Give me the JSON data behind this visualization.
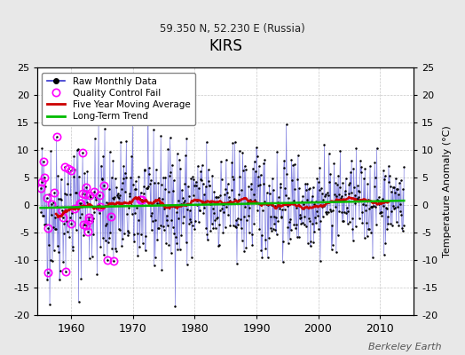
{
  "title": "KIRS",
  "subtitle": "59.350 N, 52.230 E (Russia)",
  "ylabel_right": "Temperature Anomaly (°C)",
  "ylim": [
    -20,
    25
  ],
  "yticks_left": [
    -20,
    -15,
    -10,
    -5,
    0,
    5,
    10,
    15,
    20,
    25
  ],
  "yticks_right": [
    -20,
    -15,
    -10,
    -5,
    0,
    5,
    10,
    15,
    20,
    25
  ],
  "xlim": [
    1954.5,
    2015.5
  ],
  "xticks": [
    1960,
    1970,
    1980,
    1990,
    2000,
    2010
  ],
  "background_color": "#e8e8e8",
  "plot_bg_color": "#ffffff",
  "grid_color": "#b0b0b0",
  "line_color": "#3333cc",
  "ma_color": "#cc0000",
  "trend_color": "#00bb00",
  "qc_color": "#ff00ff",
  "dot_color": "#000000",
  "watermark": "Berkeley Earth",
  "seed": 42,
  "start_year": 1955,
  "end_year": 2013
}
